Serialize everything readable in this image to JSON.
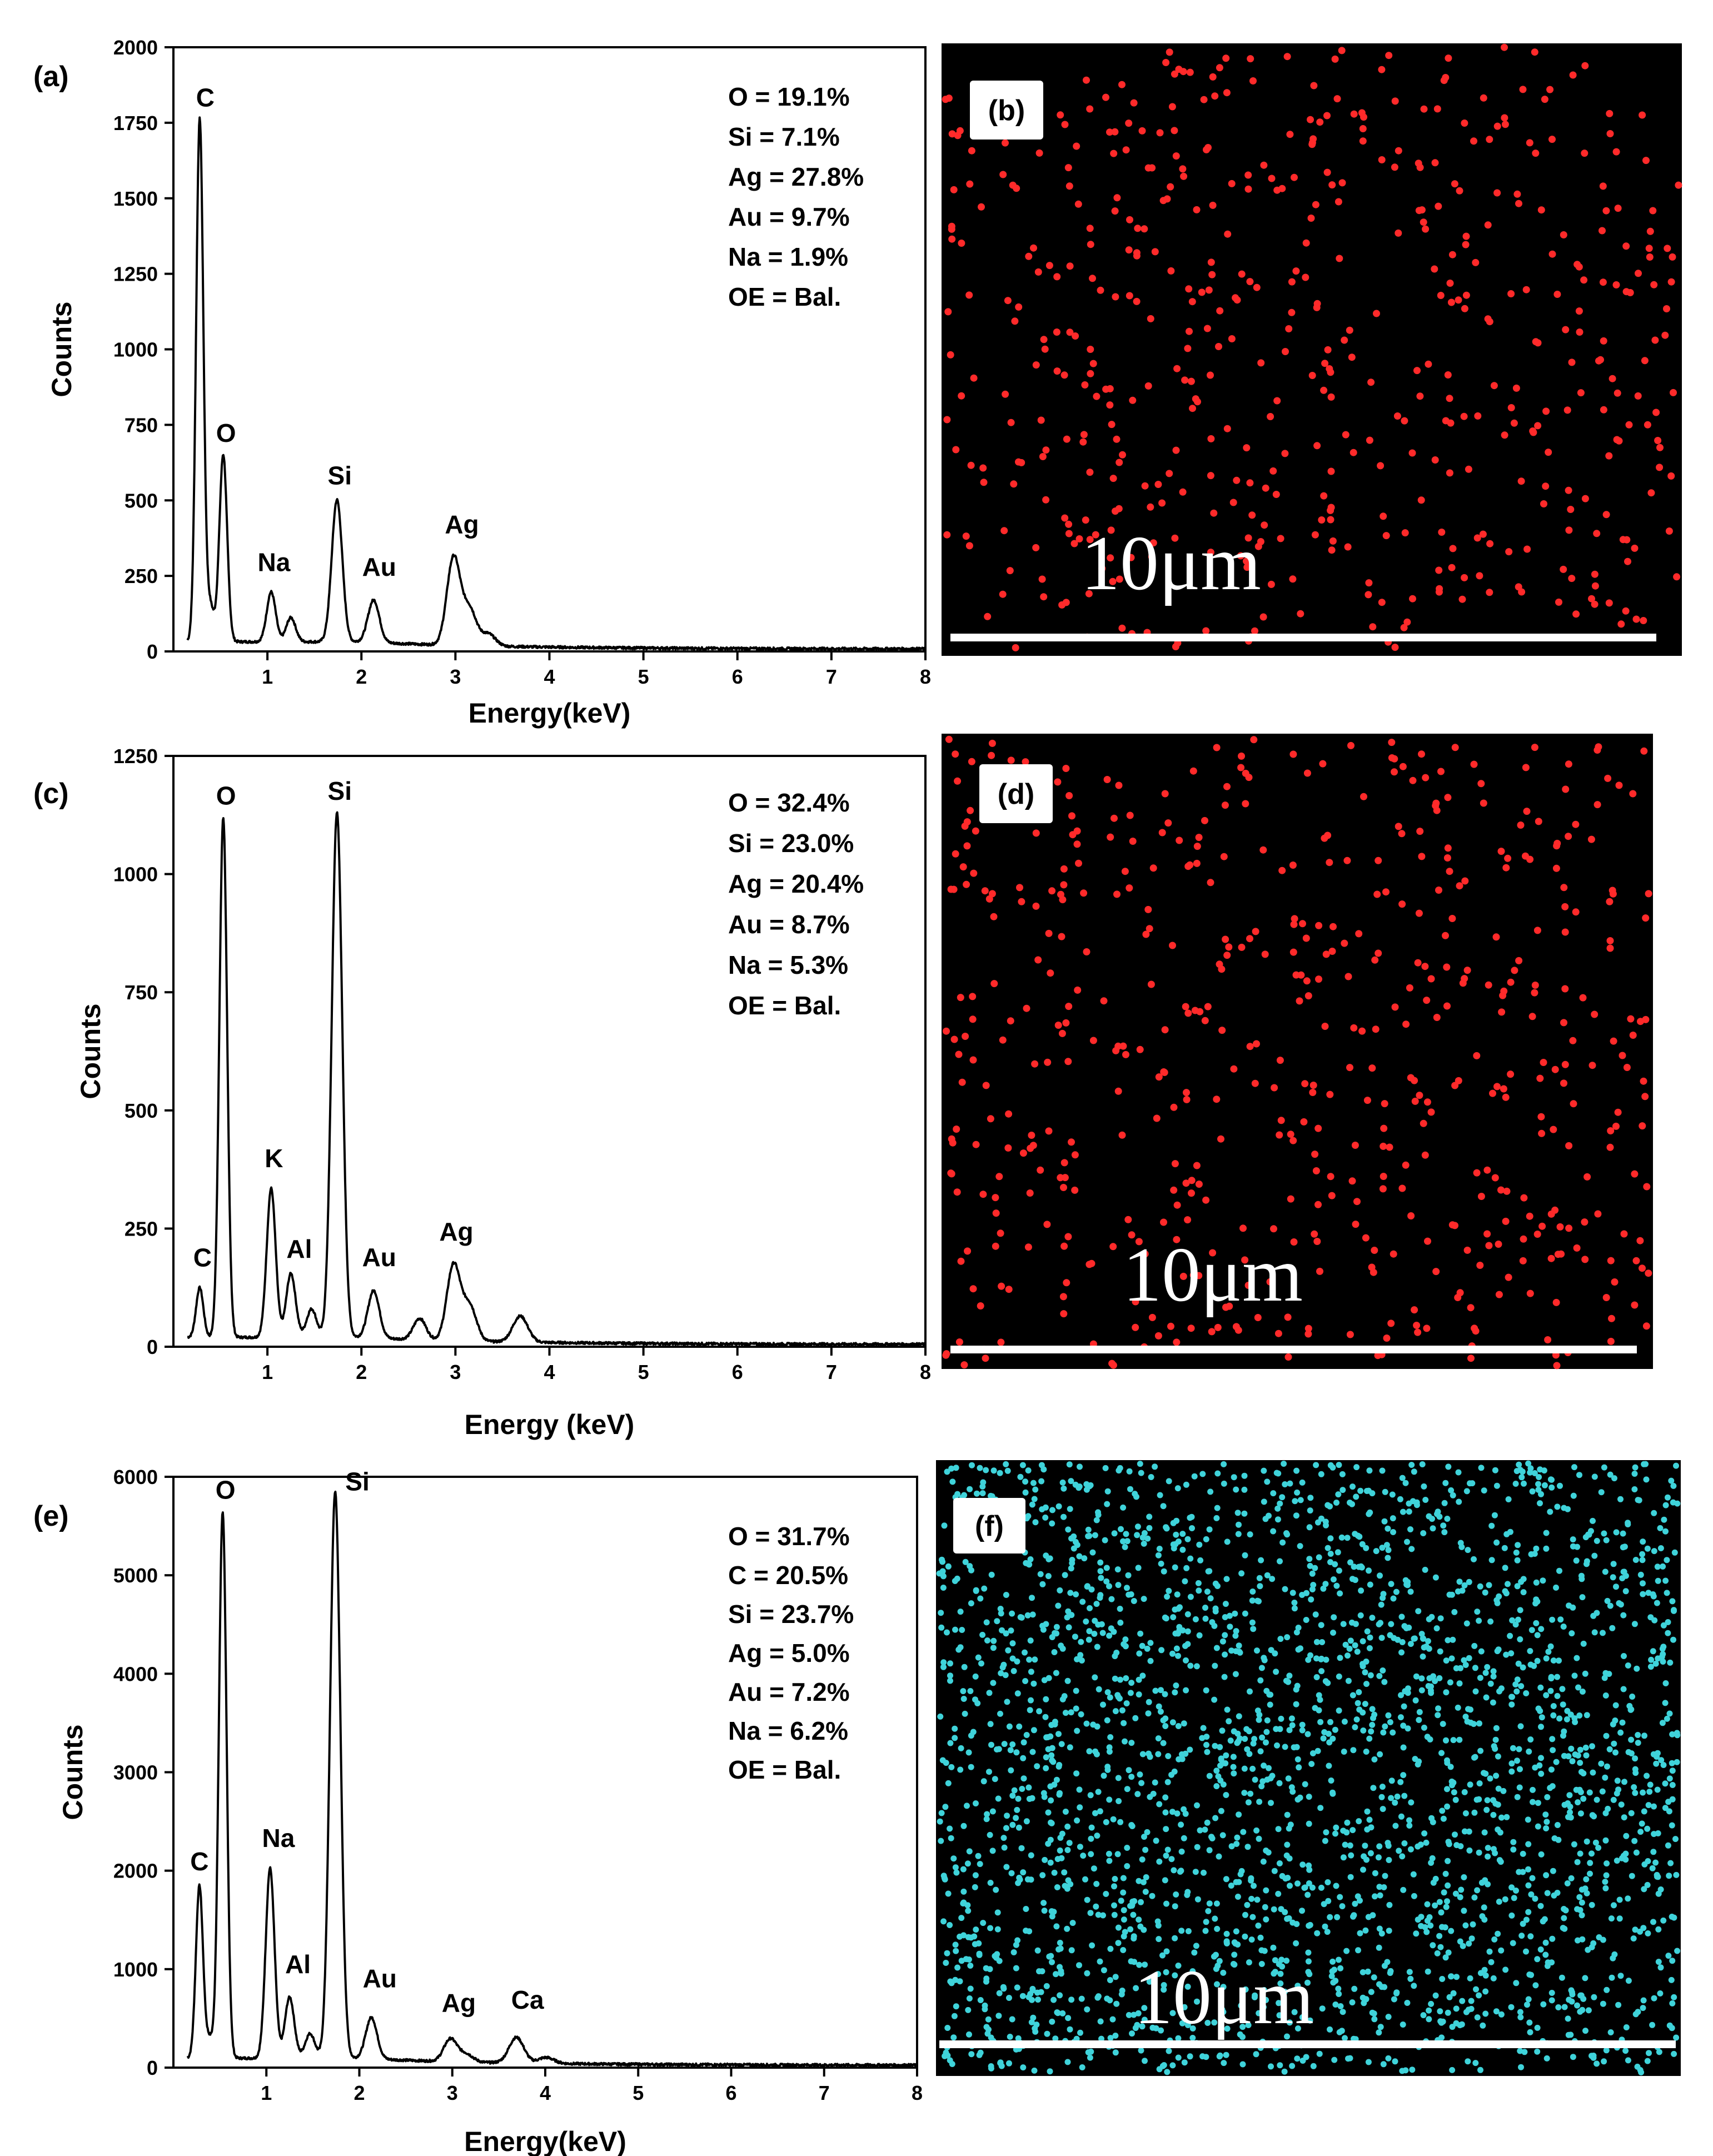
{
  "chart_data": [
    {
      "panel": "(a)",
      "type": "line",
      "xlabel": "Energy(keV)",
      "ylabel": "Counts",
      "xlim": [
        0,
        8
      ],
      "ylim": [
        0,
        2000
      ],
      "xticks": [
        1,
        2,
        3,
        4,
        5,
        6,
        7,
        8
      ],
      "yticks": [
        0,
        250,
        500,
        750,
        1000,
        1250,
        1500,
        1750,
        2000
      ],
      "peaks": [
        {
          "label": "C",
          "x": 0.28,
          "y": 1730
        },
        {
          "label": "O",
          "x": 0.53,
          "y": 620
        },
        {
          "label": "Na",
          "x": 1.04,
          "y": 165
        },
        {
          "label": "Si",
          "x": 1.74,
          "y": 470
        },
        {
          "label": "Au",
          "x": 2.13,
          "y": 140
        },
        {
          "label": "Ag",
          "x": 2.98,
          "y": 290
        }
      ],
      "minor_peaks": [
        {
          "x": 0.39,
          "y": 120
        },
        {
          "x": 1.25,
          "y": 80
        },
        {
          "x": 3.15,
          "y": 120
        },
        {
          "x": 3.35,
          "y": 40
        }
      ],
      "composition": [
        "O = 19.1%",
        "Si = 7.1%",
        "Ag = 27.8%",
        "Au = 9.7%",
        "Na = 1.9%",
        "OE = Bal."
      ]
    },
    {
      "panel": "(c)",
      "type": "line",
      "xlabel": "Energy (keV)",
      "ylabel": "Counts",
      "xlim": [
        0,
        8
      ],
      "ylim": [
        0,
        1250
      ],
      "xticks": [
        1,
        2,
        3,
        4,
        5,
        6,
        7,
        8
      ],
      "yticks": [
        0,
        250,
        500,
        750,
        1000,
        1250
      ],
      "peaks": [
        {
          "label": "C",
          "x": 0.28,
          "y": 105
        },
        {
          "label": "O",
          "x": 0.53,
          "y": 1100
        },
        {
          "label": "K",
          "x": 1.04,
          "y": 315
        },
        {
          "label": "Al",
          "x": 1.25,
          "y": 135
        },
        {
          "label": "Si",
          "x": 1.74,
          "y": 1110
        },
        {
          "label": "Au",
          "x": 2.13,
          "y": 100
        },
        {
          "label": "Ag",
          "x": 2.98,
          "y": 160
        }
      ],
      "minor_peaks": [
        {
          "x": 1.47,
          "y": 60
        },
        {
          "x": 2.62,
          "y": 45
        },
        {
          "x": 3.15,
          "y": 75
        },
        {
          "x": 3.69,
          "y": 55
        }
      ],
      "composition": [
        "O = 32.4%",
        "Si = 23.0%",
        "Ag = 20.4%",
        "Au = 8.7%",
        "Na = 5.3%",
        "OE = Bal."
      ]
    },
    {
      "panel": "(e)",
      "type": "line",
      "xlabel": "Energy(keV)",
      "ylabel": "Counts",
      "xlim": [
        0,
        8
      ],
      "ylim": [
        0,
        6000
      ],
      "xticks": [
        1,
        2,
        3,
        4,
        5,
        6,
        7,
        8
      ],
      "yticks": [
        0,
        1000,
        2000,
        3000,
        4000,
        5000,
        6000
      ],
      "peaks": [
        {
          "label": "C",
          "x": 0.28,
          "y": 1750
        },
        {
          "label": "O",
          "x": 0.53,
          "y": 5550
        },
        {
          "label": "Na",
          "x": 1.04,
          "y": 1930
        },
        {
          "label": "Al",
          "x": 1.25,
          "y": 620
        },
        {
          "label": "Si",
          "x": 1.74,
          "y": 5750
        },
        {
          "label": "Au",
          "x": 2.13,
          "y": 420
        },
        {
          "label": "Ag",
          "x": 2.98,
          "y": 230
        },
        {
          "label": "Ca",
          "x": 3.69,
          "y": 260
        }
      ],
      "minor_peaks": [
        {
          "x": 0.39,
          "y": 200
        },
        {
          "x": 1.47,
          "y": 250
        },
        {
          "x": 3.15,
          "y": 80
        },
        {
          "x": 4.01,
          "y": 60
        }
      ],
      "composition": [
        "O = 31.7%",
        "C = 20.5%",
        "Si = 23.7%",
        "Ag = 5.0%",
        "Au = 7.2%",
        "Na = 6.2%",
        "OE = Bal."
      ]
    }
  ],
  "maps": [
    {
      "panel": "(b)",
      "scale_bar": "10μm",
      "dot_color": "#ff2a2a"
    },
    {
      "panel": "(d)",
      "scale_bar": "10μm",
      "dot_color": "#ff2a2a"
    },
    {
      "panel": "(f)",
      "scale_bar": "10μm",
      "dot_color": "#3fd3da"
    }
  ]
}
